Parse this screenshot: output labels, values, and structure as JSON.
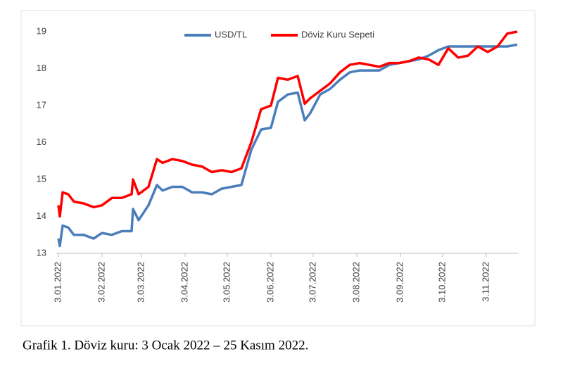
{
  "chart_data": {
    "type": "line",
    "caption": "Grafik 1. Döviz kuru: 3 Ocak 2022 – 25 Kasım 2022.",
    "x": [
      "2022-01-03",
      "2022-01-04",
      "2022-01-06",
      "2022-01-10",
      "2022-01-14",
      "2022-01-21",
      "2022-01-28",
      "2022-02-03",
      "2022-02-10",
      "2022-02-17",
      "2022-02-24",
      "2022-02-25",
      "2022-03-01",
      "2022-03-08",
      "2022-03-14",
      "2022-03-18",
      "2022-03-25",
      "2022-04-01",
      "2022-04-08",
      "2022-04-15",
      "2022-04-22",
      "2022-04-29",
      "2022-05-06",
      "2022-05-13",
      "2022-05-20",
      "2022-05-27",
      "2022-06-03",
      "2022-06-08",
      "2022-06-15",
      "2022-06-22",
      "2022-06-27",
      "2022-07-01",
      "2022-07-08",
      "2022-07-15",
      "2022-07-22",
      "2022-07-29",
      "2022-08-05",
      "2022-08-12",
      "2022-08-19",
      "2022-08-26",
      "2022-09-02",
      "2022-09-09",
      "2022-09-16",
      "2022-09-23",
      "2022-09-30",
      "2022-10-07",
      "2022-10-14",
      "2022-10-21",
      "2022-10-28",
      "2022-11-04",
      "2022-11-11",
      "2022-11-18",
      "2022-11-25"
    ],
    "series": [
      {
        "name": "USD/TL",
        "color": "#4a7ebb",
        "values": [
          13.4,
          13.2,
          13.75,
          13.7,
          13.5,
          13.5,
          13.4,
          13.55,
          13.5,
          13.6,
          13.6,
          14.2,
          13.9,
          14.3,
          14.85,
          14.7,
          14.8,
          14.8,
          14.65,
          14.65,
          14.6,
          14.75,
          14.8,
          14.85,
          15.8,
          16.35,
          16.4,
          17.1,
          17.3,
          17.35,
          16.6,
          16.8,
          17.3,
          17.45,
          17.7,
          17.9,
          17.95,
          17.95,
          17.95,
          18.1,
          18.15,
          18.2,
          18.25,
          18.35,
          18.5,
          18.6,
          18.6,
          18.6,
          18.6,
          18.6,
          18.6,
          18.6,
          18.65
        ]
      },
      {
        "name": "Döviz Kuru Sepeti",
        "color": "#ff0000",
        "values": [
          14.3,
          14.0,
          14.65,
          14.6,
          14.4,
          14.35,
          14.25,
          14.3,
          14.5,
          14.5,
          14.6,
          15.0,
          14.6,
          14.8,
          15.55,
          15.45,
          15.55,
          15.5,
          15.4,
          15.35,
          15.2,
          15.25,
          15.2,
          15.3,
          16.0,
          16.9,
          17.0,
          17.75,
          17.7,
          17.8,
          17.05,
          17.2,
          17.4,
          17.6,
          17.9,
          18.1,
          18.15,
          18.1,
          18.05,
          18.15,
          18.15,
          18.2,
          18.3,
          18.25,
          18.1,
          18.55,
          18.3,
          18.35,
          18.6,
          18.45,
          18.6,
          18.95,
          19.0
        ]
      }
    ],
    "xlim": [
      "2022-01-03",
      "2022-11-25"
    ],
    "xticks": [
      {
        "value": "2022-01-03",
        "label": "3.01.2022"
      },
      {
        "value": "2022-02-03",
        "label": "3.02.2022"
      },
      {
        "value": "2022-03-03",
        "label": "3.03.2022"
      },
      {
        "value": "2022-04-03",
        "label": "3.04.2022"
      },
      {
        "value": "2022-05-03",
        "label": "3.05.2022"
      },
      {
        "value": "2022-06-03",
        "label": "3.06.2022"
      },
      {
        "value": "2022-07-03",
        "label": "3.07.2022"
      },
      {
        "value": "2022-08-03",
        "label": "3.08.2022"
      },
      {
        "value": "2022-09-03",
        "label": "3.09.2022"
      },
      {
        "value": "2022-10-03",
        "label": "3.10.2022"
      },
      {
        "value": "2022-11-03",
        "label": "3.11.2022"
      }
    ],
    "ylim": [
      13,
      19
    ],
    "yticks": [
      13,
      14,
      15,
      16,
      17,
      18,
      19
    ],
    "legend": "top"
  }
}
